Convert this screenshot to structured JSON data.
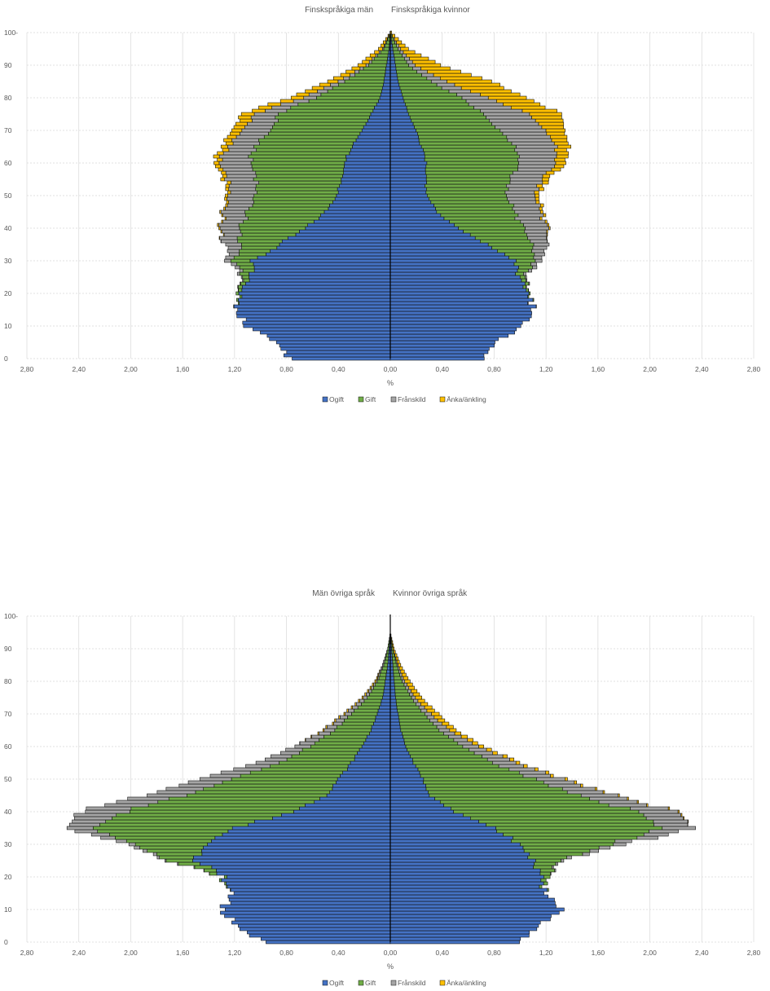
{
  "chart_data": [
    {
      "type": "bar",
      "orientation": "horizontal",
      "stacked": true,
      "subtype": "population-pyramid",
      "title_left": "Finskspråkiga män",
      "title_right": "Finskspråkiga kvinnor",
      "xlabel": "%",
      "xlim": [
        -2.8,
        2.8
      ],
      "xticks": [
        -2.8,
        -2.4,
        -2.0,
        -1.6,
        -1.2,
        -0.8,
        -0.4,
        0.0,
        0.4,
        0.8,
        1.2,
        1.6,
        2.0,
        2.4,
        2.8
      ],
      "xtick_labels": [
        "2,80",
        "2,40",
        "2,00",
        "1,60",
        "1,20",
        "0,80",
        "0,40",
        "0,00",
        "0,40",
        "0,80",
        "1,20",
        "1,60",
        "2,00",
        "2,40",
        "2,80"
      ],
      "ylim": [
        0,
        100
      ],
      "yticks": [
        0,
        10,
        20,
        30,
        40,
        50,
        60,
        70,
        80,
        90,
        100
      ],
      "ytick_labels": [
        "0",
        "10",
        "20",
        "30",
        "40",
        "50",
        "60",
        "70",
        "80",
        "90",
        "100-"
      ],
      "grid": true,
      "legend_position": "bottom",
      "series": [
        {
          "name": "Ogift",
          "color": "#4472C4"
        },
        {
          "name": "Gift",
          "color": "#70AD47"
        },
        {
          "name": "Frånskild",
          "color": "#A5A5A5"
        },
        {
          "name": "Änka/änkling",
          "color": "#FFC000"
        }
      ],
      "profile_points": {
        "men": {
          "age": [
            0,
            5,
            10,
            15,
            20,
            25,
            30,
            35,
            40,
            45,
            50,
            55,
            60,
            65,
            70,
            75,
            80,
            85,
            90,
            95,
            100
          ],
          "Ogift": [
            0.78,
            0.88,
            1.1,
            1.18,
            1.15,
            1.1,
            1.05,
            0.85,
            0.65,
            0.5,
            0.42,
            0.37,
            0.36,
            0.3,
            0.22,
            0.15,
            0.08,
            0.05,
            0.03,
            0.01,
            0.0
          ],
          "Gift": [
            0.0,
            0.0,
            0.0,
            0.0,
            0.02,
            0.05,
            0.15,
            0.3,
            0.5,
            0.6,
            0.62,
            0.66,
            0.72,
            0.75,
            0.7,
            0.72,
            0.5,
            0.3,
            0.14,
            0.04,
            0.0
          ],
          "Frånskild": [
            0.0,
            0.0,
            0.0,
            0.0,
            0.0,
            0.01,
            0.05,
            0.12,
            0.15,
            0.18,
            0.2,
            0.22,
            0.24,
            0.2,
            0.22,
            0.18,
            0.1,
            0.05,
            0.02,
            0.01,
            0.0
          ],
          "Änka/änkling": [
            0.0,
            0.0,
            0.0,
            0.0,
            0.0,
            0.0,
            0.0,
            0.0,
            0.01,
            0.01,
            0.02,
            0.03,
            0.04,
            0.05,
            0.08,
            0.1,
            0.1,
            0.08,
            0.06,
            0.03,
            0.0
          ]
        },
        "women": {
          "age": [
            0,
            5,
            10,
            15,
            20,
            25,
            30,
            35,
            40,
            45,
            50,
            55,
            60,
            65,
            70,
            75,
            80,
            85,
            90,
            95,
            100
          ],
          "Ogift": [
            0.72,
            0.8,
            1.02,
            1.1,
            1.06,
            1.0,
            0.95,
            0.75,
            0.52,
            0.36,
            0.28,
            0.27,
            0.28,
            0.24,
            0.2,
            0.14,
            0.1,
            0.06,
            0.04,
            0.02,
            0.0
          ],
          "Gift": [
            0.0,
            0.0,
            0.0,
            0.0,
            0.01,
            0.04,
            0.15,
            0.35,
            0.5,
            0.6,
            0.62,
            0.65,
            0.72,
            0.72,
            0.65,
            0.58,
            0.45,
            0.25,
            0.1,
            0.04,
            0.0
          ],
          "Frånskild": [
            0.0,
            0.0,
            0.0,
            0.0,
            0.0,
            0.01,
            0.05,
            0.12,
            0.18,
            0.2,
            0.22,
            0.25,
            0.28,
            0.32,
            0.35,
            0.35,
            0.2,
            0.12,
            0.05,
            0.02,
            0.0
          ],
          "Änka/änkling": [
            0.0,
            0.0,
            0.0,
            0.0,
            0.0,
            0.0,
            0.0,
            0.0,
            0.01,
            0.02,
            0.03,
            0.05,
            0.08,
            0.1,
            0.15,
            0.25,
            0.3,
            0.35,
            0.2,
            0.06,
            0.01
          ]
        }
      }
    },
    {
      "type": "bar",
      "orientation": "horizontal",
      "stacked": true,
      "subtype": "population-pyramid",
      "title_left": "Män övriga språk",
      "title_right": "Kvinnor övriga språk",
      "xlabel": "%",
      "xlim": [
        -2.8,
        2.8
      ],
      "xticks": [
        -2.8,
        -2.4,
        -2.0,
        -1.6,
        -1.2,
        -0.8,
        -0.4,
        0.0,
        0.4,
        0.8,
        1.2,
        1.6,
        2.0,
        2.4,
        2.8
      ],
      "xtick_labels": [
        "2,80",
        "2,40",
        "2,00",
        "1,60",
        "1,20",
        "0,80",
        "0,40",
        "0,00",
        "0,40",
        "0,80",
        "1,20",
        "1,60",
        "2,00",
        "2,40",
        "2,80"
      ],
      "ylim": [
        0,
        100
      ],
      "yticks": [
        0,
        10,
        20,
        30,
        40,
        50,
        60,
        70,
        80,
        90,
        100
      ],
      "ytick_labels": [
        "0",
        "10",
        "20",
        "30",
        "40",
        "50",
        "60",
        "70",
        "80",
        "90",
        "100-"
      ],
      "grid": true,
      "legend_position": "bottom",
      "series": [
        {
          "name": "Ogift",
          "color": "#4472C4"
        },
        {
          "name": "Gift",
          "color": "#70AD47"
        },
        {
          "name": "Frånskild",
          "color": "#A5A5A5"
        },
        {
          "name": "Änka/änkling",
          "color": "#FFC000"
        }
      ],
      "profile_points": {
        "men": {
          "age": [
            0,
            5,
            10,
            15,
            20,
            25,
            30,
            35,
            40,
            45,
            50,
            55,
            60,
            65,
            70,
            75,
            80,
            85,
            90,
            95,
            100
          ],
          "Ogift": [
            0.98,
            1.18,
            1.3,
            1.2,
            1.28,
            1.5,
            1.45,
            1.2,
            0.75,
            0.5,
            0.4,
            0.3,
            0.22,
            0.15,
            0.1,
            0.06,
            0.04,
            0.02,
            0.01,
            0.0,
            0.0
          ],
          "Gift": [
            0.0,
            0.0,
            0.0,
            0.0,
            0.02,
            0.2,
            0.55,
            1.1,
            1.3,
            1.1,
            0.8,
            0.55,
            0.4,
            0.28,
            0.2,
            0.12,
            0.06,
            0.03,
            0.01,
            0.0,
            0.0
          ],
          "Frånskild": [
            0.0,
            0.0,
            0.0,
            0.0,
            0.0,
            0.01,
            0.05,
            0.2,
            0.35,
            0.3,
            0.25,
            0.18,
            0.12,
            0.08,
            0.05,
            0.03,
            0.01,
            0.01,
            0.0,
            0.0,
            0.0
          ],
          "Änka/änkling": [
            0.0,
            0.0,
            0.0,
            0.0,
            0.0,
            0.0,
            0.0,
            0.0,
            0.0,
            0.0,
            0.0,
            0.0,
            0.0,
            0.01,
            0.01,
            0.01,
            0.01,
            0.0,
            0.0,
            0.0,
            0.0
          ]
        },
        "women": {
          "age": [
            0,
            5,
            10,
            15,
            20,
            25,
            30,
            35,
            40,
            45,
            50,
            55,
            60,
            65,
            70,
            75,
            80,
            85,
            90,
            95,
            100
          ],
          "Ogift": [
            0.98,
            1.15,
            1.32,
            1.2,
            1.15,
            1.1,
            1.0,
            0.8,
            0.5,
            0.3,
            0.25,
            0.18,
            0.12,
            0.08,
            0.06,
            0.04,
            0.03,
            0.02,
            0.01,
            0.0,
            0.0
          ],
          "Gift": [
            0.0,
            0.0,
            0.0,
            0.0,
            0.05,
            0.2,
            0.7,
            1.3,
            1.4,
            1.15,
            0.85,
            0.6,
            0.45,
            0.3,
            0.2,
            0.12,
            0.06,
            0.03,
            0.01,
            0.0,
            0.0
          ],
          "Frånskild": [
            0.0,
            0.0,
            0.0,
            0.0,
            0.0,
            0.02,
            0.1,
            0.25,
            0.3,
            0.28,
            0.22,
            0.18,
            0.12,
            0.08,
            0.05,
            0.03,
            0.02,
            0.01,
            0.0,
            0.0,
            0.0
          ],
          "Änka/änkling": [
            0.0,
            0.0,
            0.0,
            0.0,
            0.0,
            0.0,
            0.0,
            0.0,
            0.01,
            0.01,
            0.02,
            0.03,
            0.04,
            0.05,
            0.06,
            0.05,
            0.04,
            0.02,
            0.01,
            0.0,
            0.0
          ]
        }
      }
    }
  ]
}
